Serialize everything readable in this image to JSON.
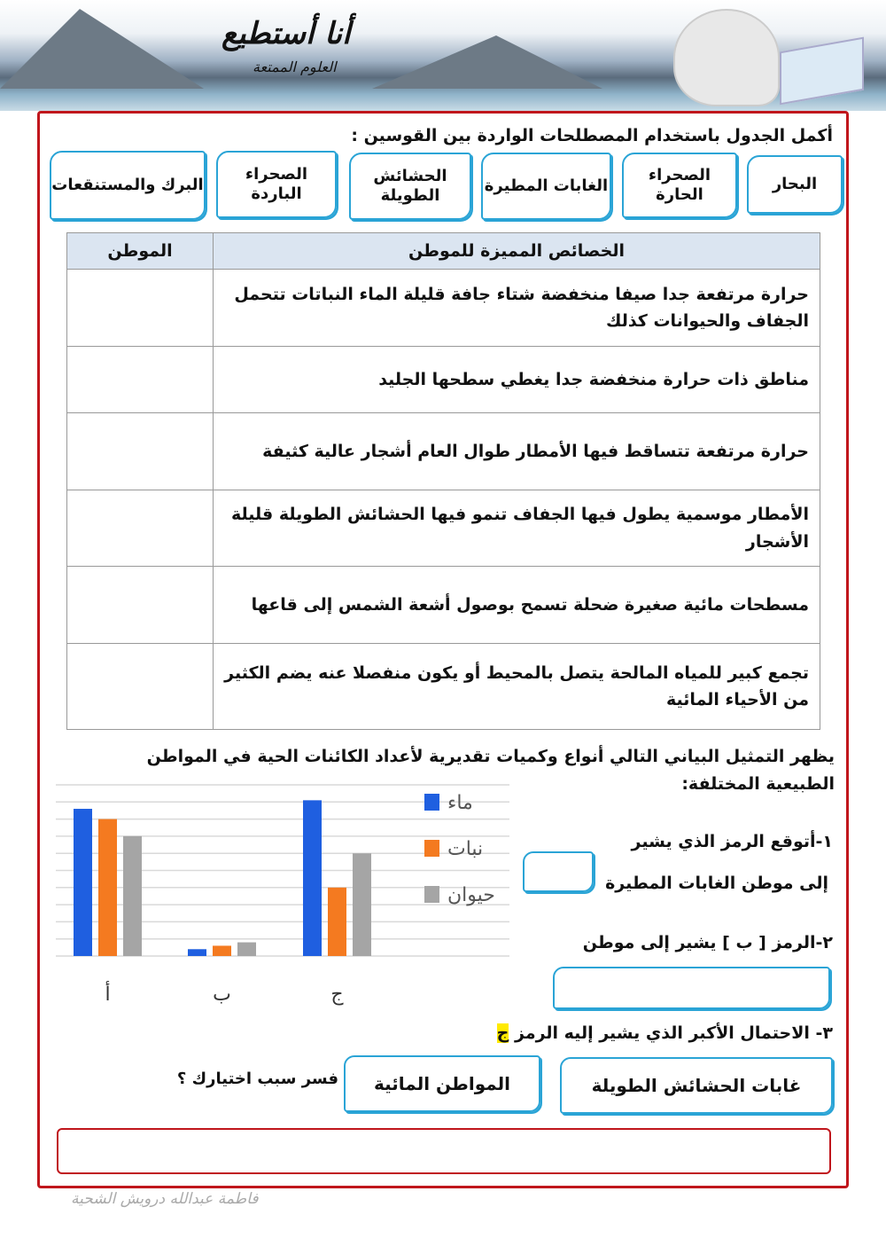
{
  "header": {
    "title": "أنا أستطيع",
    "subtitle": "العلوم الممتعة"
  },
  "instruction": "أكمل الجدول باستخدام المصطلحات الواردة بين القوسين :",
  "terms": [
    "البحار",
    "الصحراء الحارة",
    "الغابات المطيرة",
    "الحشائش الطويلة",
    "الصحراء الباردة",
    "البرك والمستنقعات"
  ],
  "table": {
    "headers": [
      "الخصائص المميزة للموطن",
      "الموطن"
    ],
    "rows": [
      "حرارة مرتفعة جدا صيفا منخفضة شتاء جافة قليلة الماء النباتات تتحمل الجفاف والحيوانات كذلك",
      "مناطق ذات حرارة منخفضة جدا يغطي سطحها الجليد",
      "حرارة مرتفعة تتساقط فيها الأمطار طوال العام أشجار عالية كثيفة",
      "الأمطار موسمية يطول فيها الجفاف تنمو فيها الحشائش الطويلة قليلة الأشجار",
      "مسطحات مائية صغيرة ضحلة تسمح بوصول أشعة الشمس إلى قاعها",
      "تجمع كبير للمياه المالحة يتصل بالمحيط أو يكون منفصلا عنه يضم الكثير من الأحياء المائية"
    ]
  },
  "chart_intro": "يظهر التمثيل البياني التالي أنواع وكميات تقديرية لأعداد الكائنات الحية في المواطن الطبيعية المختلفة:",
  "chart_data": {
    "type": "bar",
    "categories": [
      "أ",
      "ب",
      "ج"
    ],
    "ylim": [
      0,
      10
    ],
    "grid": true,
    "legend": "right",
    "series": [
      {
        "name": "ماء",
        "color": "#1f5fe0",
        "values": [
          8.6,
          0.4,
          9.1
        ]
      },
      {
        "name": "نبات",
        "color": "#f47a20",
        "values": [
          8,
          0.6,
          4
        ]
      },
      {
        "name": "حيوان",
        "color": "#a5a5a5",
        "values": [
          7,
          0.8,
          6
        ]
      }
    ]
  },
  "questions": {
    "q1_line1": "١-أتوقع الرمز الذي يشير",
    "q1_line2": "إلى موطن الغابات المطيرة",
    "q2": "٢-الرمز [ ب ] يشير إلى موطن",
    "q3": "٣- الاحتمال الأكبر الذي يشير إليه الرمز",
    "q3_symbol": "ج",
    "options": [
      "غابات الحشائش الطويلة",
      "المواطن المائية"
    ],
    "explain": "فسر سبب اختيارك ؟"
  },
  "footer": "فاطمة عبدالله درويش الشحية"
}
